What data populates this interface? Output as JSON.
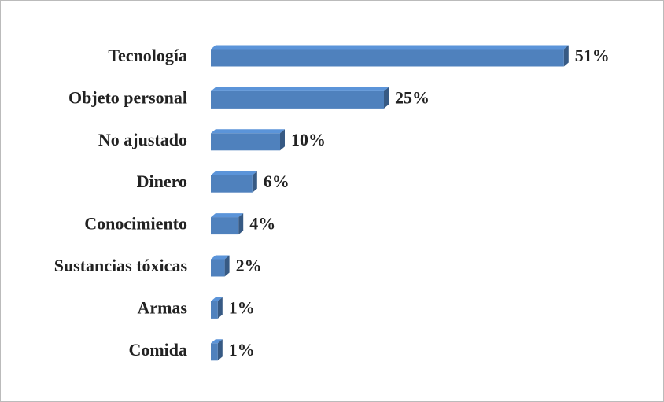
{
  "chart_data": {
    "type": "bar",
    "orientation": "horizontal",
    "categories": [
      "Tecnología",
      "Objeto personal",
      "No ajustado",
      "Dinero",
      "Conocimiento",
      "Sustancias tóxicas",
      "Armas",
      "Comida"
    ],
    "values": [
      51,
      25,
      10,
      6,
      4,
      2,
      1,
      1
    ],
    "value_labels": [
      "51%",
      "25%",
      "10%",
      "6%",
      "4%",
      "2%",
      "1%",
      "1%"
    ],
    "color": "#4f81bd"
  }
}
